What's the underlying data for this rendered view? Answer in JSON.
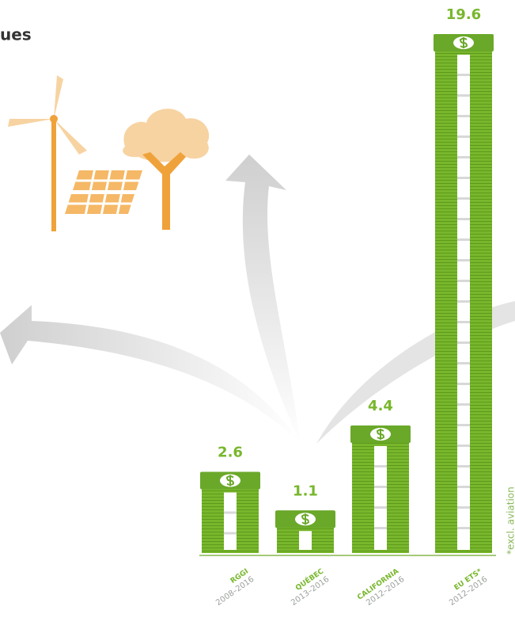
{
  "chart_data": {
    "type": "bar",
    "title": "ues",
    "categories": [
      "RGGI",
      "QUÉBEC",
      "CALIFORNIA",
      "EU ETS*"
    ],
    "periods": [
      "2008–2016",
      "2013–2016",
      "2012–2016",
      "2012–2016"
    ],
    "values": [
      2.6,
      1.1,
      4.4,
      19.6
    ],
    "color": "#78b72c",
    "footnote": "*excl. aviation"
  }
}
